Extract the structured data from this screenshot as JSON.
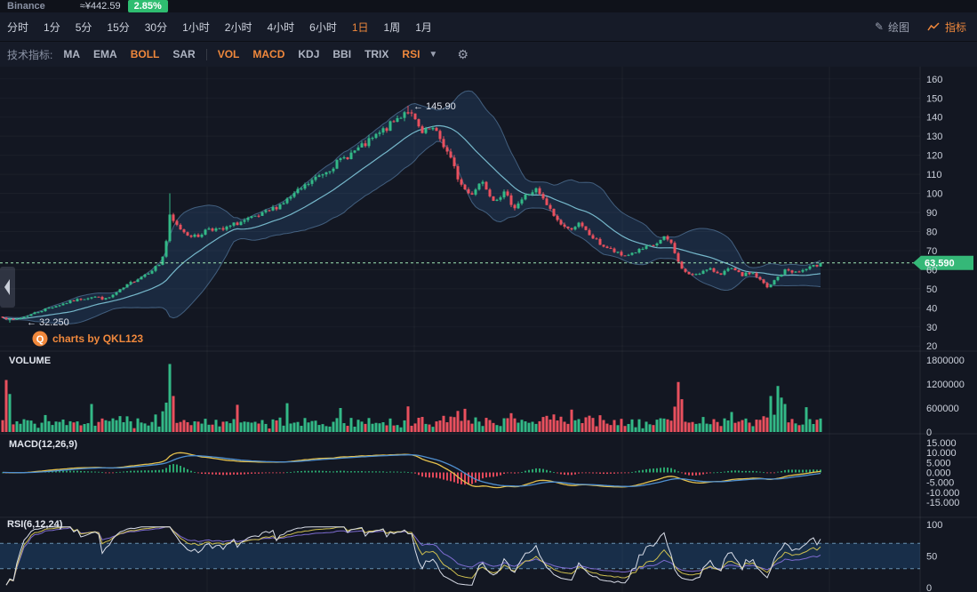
{
  "topbar": {
    "exchange": "Binance",
    "price_cny": "≈¥442.59",
    "change_pct": "2.85%"
  },
  "intervals": {
    "items": [
      "分时",
      "1分",
      "5分",
      "15分",
      "30分",
      "1小时",
      "2小时",
      "4小时",
      "6小时",
      "1日",
      "1周",
      "1月"
    ],
    "active": "1日",
    "draw_label": "绘图",
    "indicator_label": "指标"
  },
  "indicator_bar": {
    "label": "技术指标:",
    "main": [
      {
        "label": "MA",
        "active": false
      },
      {
        "label": "EMA",
        "active": false
      },
      {
        "label": "BOLL",
        "active": true
      },
      {
        "label": "SAR",
        "active": false
      }
    ],
    "sub": [
      {
        "label": "VOL",
        "active": true
      },
      {
        "label": "MACD",
        "active": true
      },
      {
        "label": "KDJ",
        "active": false
      },
      {
        "label": "BBI",
        "active": false
      },
      {
        "label": "TRIX",
        "active": false
      },
      {
        "label": "RSI",
        "active": true
      }
    ]
  },
  "panels": {
    "volume_label": "VOLUME",
    "macd_label": "MACD(12,26,9)",
    "rsi_label": "RSI(6,12,24)"
  },
  "annotations": {
    "high": "← 145.90",
    "low": "← 32.250",
    "last_price": "63.590"
  },
  "watermark": {
    "logo": "Q",
    "text": "charts by QKL123"
  },
  "axes": {
    "price_ticks": [
      160,
      150,
      140,
      130,
      120,
      110,
      100,
      90,
      80,
      70,
      60,
      50,
      40,
      30,
      20
    ],
    "volume_ticks": [
      "1800000",
      "1200000",
      "600000",
      "0"
    ],
    "macd_ticks": [
      "15.000",
      "10.000",
      "5.000",
      "0.000",
      "-5.000",
      "-10.000",
      "-15.000"
    ],
    "rsi_ticks": [
      "100",
      "50",
      "0"
    ]
  },
  "chart_data": {
    "type": "candlestick+indicators",
    "exchange": "Binance",
    "interval": "1日",
    "candles": 231,
    "seed": 7,
    "price_axis_range": [
      20,
      160
    ],
    "volume_axis_range": [
      0,
      1800000
    ],
    "macd_axis_range": [
      -15,
      15
    ],
    "rsi_axis_range": [
      0,
      100
    ],
    "rsi_band": [
      30,
      70
    ],
    "high": 145.9,
    "low": 32.25,
    "last": 63.59,
    "bollinger_period": 20,
    "macd_params": [
      12,
      26,
      9
    ],
    "rsi_params": [
      6,
      12,
      24
    ],
    "pins": {
      "high_index": 114,
      "low_index": 2,
      "spike_index": 47,
      "spike_high": 100
    },
    "price_anchors": [
      [
        0,
        36
      ],
      [
        12,
        33.5
      ],
      [
        25,
        35
      ],
      [
        55,
        40
      ],
      [
        85,
        44
      ],
      [
        105,
        46
      ],
      [
        120,
        44.5
      ],
      [
        135,
        49
      ],
      [
        150,
        54
      ],
      [
        165,
        58
      ],
      [
        180,
        63
      ],
      [
        186,
        70
      ],
      [
        191,
        88
      ],
      [
        197,
        84
      ],
      [
        210,
        79
      ],
      [
        222,
        77
      ],
      [
        235,
        82
      ],
      [
        250,
        80.5
      ],
      [
        265,
        84
      ],
      [
        278,
        86
      ],
      [
        292,
        88
      ],
      [
        308,
        92
      ],
      [
        322,
        96
      ],
      [
        336,
        101
      ],
      [
        350,
        106
      ],
      [
        365,
        111
      ],
      [
        380,
        116
      ],
      [
        396,
        121
      ],
      [
        410,
        125
      ],
      [
        424,
        130
      ],
      [
        438,
        135
      ],
      [
        450,
        140
      ],
      [
        459,
        144.5
      ],
      [
        466,
        139
      ],
      [
        476,
        131
      ],
      [
        487,
        134
      ],
      [
        497,
        128
      ],
      [
        507,
        119
      ],
      [
        519,
        105
      ],
      [
        530,
        99
      ],
      [
        543,
        107
      ],
      [
        556,
        97
      ],
      [
        568,
        100
      ],
      [
        580,
        93
      ],
      [
        593,
        99
      ],
      [
        604,
        102
      ],
      [
        616,
        94
      ],
      [
        628,
        86
      ],
      [
        640,
        81
      ],
      [
        652,
        84
      ],
      [
        665,
        78
      ],
      [
        678,
        73
      ],
      [
        690,
        70
      ],
      [
        702,
        67
      ],
      [
        714,
        69
      ],
      [
        726,
        71
      ],
      [
        738,
        73
      ],
      [
        750,
        77
      ],
      [
        758,
        73
      ],
      [
        766,
        62
      ],
      [
        776,
        57
      ],
      [
        788,
        58.5
      ],
      [
        800,
        60
      ],
      [
        812,
        58
      ],
      [
        824,
        60.5
      ],
      [
        836,
        57
      ],
      [
        848,
        58.5
      ],
      [
        858,
        54
      ],
      [
        866,
        50
      ],
      [
        874,
        55
      ],
      [
        886,
        60
      ],
      [
        898,
        58.5
      ],
      [
        910,
        60.5
      ],
      [
        925,
        63
      ]
    ],
    "volume_spikes": [
      [
        1,
        1300000
      ],
      [
        2,
        950000
      ],
      [
        25,
        700000
      ],
      [
        47,
        1700000
      ],
      [
        48,
        900000
      ],
      [
        66,
        680000
      ],
      [
        80,
        720000
      ],
      [
        95,
        600000
      ],
      [
        114,
        640000
      ],
      [
        130,
        580000
      ],
      [
        160,
        560000
      ],
      [
        190,
        1250000
      ],
      [
        191,
        820000
      ],
      [
        205,
        500000
      ],
      [
        216,
        900000
      ],
      [
        218,
        1150000
      ],
      [
        219,
        860000
      ],
      [
        220,
        700000
      ],
      [
        226,
        620000
      ]
    ]
  },
  "colors": {
    "bg": "#131722",
    "toolbar_bg": "#161b28",
    "topbar_bg": "#0f121a",
    "up": "#33b987",
    "down": "#e9505e",
    "boll_fill": "rgba(56,110,170,0.22)",
    "boll_edge": "rgba(120,170,220,0.45)",
    "boll_mid": "#7fc6d9",
    "price_line": "#9fe7b5",
    "price_tag": "#35b878",
    "dif": "#e5c14d",
    "dea": "#4f8fd0",
    "rsi6": "#d9dde8",
    "rsi12": "#cfc04f",
    "rsi24": "#7d6bd0",
    "band_fill": "rgba(38,96,155,0.32)",
    "band_edge": "#76a3c6",
    "accent": "#f0883c",
    "text": "#cfd4df",
    "muted": "#8a92a4",
    "grid": "rgba(255,255,255,0.045)",
    "axis_text": "#ccd1dc",
    "badge": "#2ebd70",
    "hist_up": "#2aa56d",
    "hist_down": "#e0485a"
  }
}
